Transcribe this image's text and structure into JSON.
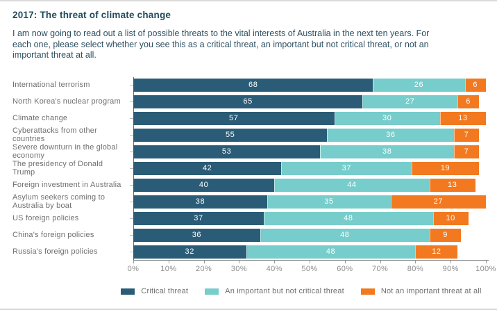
{
  "header": {
    "title": "2017: The threat of climate change",
    "subtitle_lines": [
      "I am now going to read out a list of possible threats to the vital interests of Australia in the next ten years. For",
      "each one, please select whether you see this as a critical threat, an important but not critical threat, or not an",
      "important threat at all."
    ]
  },
  "colors": {
    "critical": "#2b5c77",
    "important": "#76cdcb",
    "not_important": "#f2791f",
    "value_text": "#ffffff",
    "ink": "#1f4a5d",
    "label_text": "#6f6f6f",
    "axis_text": "#8b8b8b"
  },
  "chart_data": {
    "type": "bar",
    "orientation": "horizontal",
    "stacked": true,
    "title": "2017: The threat of climate change",
    "xlabel": "",
    "ylabel": "",
    "xlim": [
      0,
      100
    ],
    "grid": false,
    "legend_position": "bottom",
    "categories": [
      "International terrorism",
      "North Korea's nuclear program",
      "Climate change",
      "Cyberattacks from other countries",
      "Severe downturn in the global economy",
      "The presidency of Donald Trump",
      "Foreign investment in Australia",
      "Asylum seekers coming to Australia by boat",
      "US foreign policies",
      "China's foreign policies",
      "Russia's foreign policies"
    ],
    "series": [
      {
        "name": "Critical threat",
        "color_key": "critical",
        "values": [
          68,
          65,
          57,
          55,
          53,
          42,
          40,
          38,
          37,
          36,
          32
        ]
      },
      {
        "name": "An important but not critical threat",
        "color_key": "important",
        "values": [
          26,
          27,
          30,
          36,
          38,
          37,
          44,
          35,
          48,
          48,
          48
        ]
      },
      {
        "name": "Not an important threat at all",
        "color_key": "not_important",
        "values": [
          6,
          6,
          13,
          7,
          7,
          19,
          13,
          27,
          10,
          9,
          12
        ]
      }
    ],
    "x_ticks": [
      "0%",
      "10%",
      "20%",
      "30%",
      "40%",
      "50%",
      "60%",
      "70%",
      "80%",
      "90%",
      "100%"
    ]
  }
}
